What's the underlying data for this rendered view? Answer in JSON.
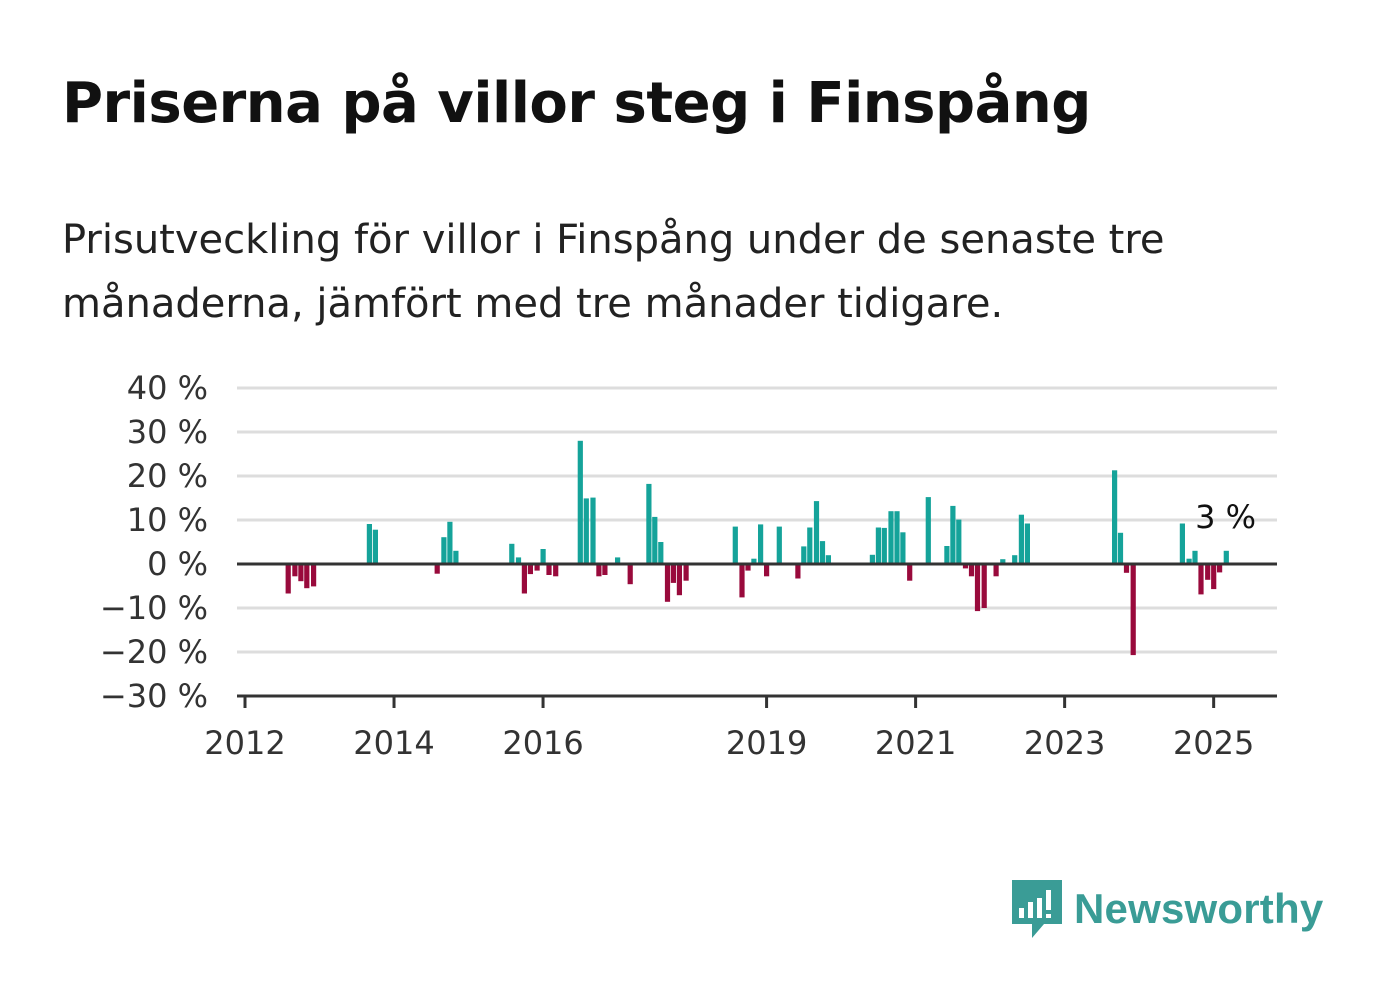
{
  "title": "Priserna på villor steg i Finspång",
  "subtitle": "Prisutveckling för villor i Finspång under de senaste tre månaderna, jämfört med tre månader tidigare.",
  "brand": {
    "name": "Newsworthy",
    "icon": "newsworthy-logo-icon",
    "color": "#3a9c96"
  },
  "colors": {
    "positive": "#15a39a",
    "negative": "#990a3c",
    "grid": "#dddddd",
    "axis": "#333333"
  },
  "chart_data": {
    "type": "bar",
    "ylim": [
      -30,
      40
    ],
    "yticks": [
      40,
      30,
      20,
      10,
      0,
      -10,
      -20,
      -30
    ],
    "ytick_labels": [
      "40 %",
      "30 %",
      "20 %",
      "10 %",
      "0 %",
      "−10 %",
      "−20 %",
      "−30 %"
    ],
    "xlim": [
      2012,
      2025.85
    ],
    "xticks": [
      2012,
      2014,
      2016,
      2019,
      2021,
      2023,
      2025
    ],
    "xtick_labels": [
      "2012",
      "2014",
      "2016",
      "2019",
      "2021",
      "2023",
      "2025"
    ],
    "grid": true,
    "annotation": {
      "text": "3 %",
      "x": 2025.17,
      "y": 3
    },
    "series": [
      {
        "values": [
          [
            2012.58,
            -6.7
          ],
          [
            2012.67,
            -2.8
          ],
          [
            2012.75,
            -3.9
          ],
          [
            2012.83,
            -5.5
          ],
          [
            2012.92,
            -5.1
          ],
          [
            2013.67,
            9.1
          ],
          [
            2013.75,
            7.8
          ],
          [
            2014.58,
            -2.2
          ],
          [
            2014.67,
            6.1
          ],
          [
            2014.75,
            9.6
          ],
          [
            2014.83,
            3.0
          ],
          [
            2015.58,
            4.6
          ],
          [
            2015.67,
            1.5
          ],
          [
            2015.75,
            -6.7
          ],
          [
            2015.83,
            -2.3
          ],
          [
            2015.92,
            -1.5
          ],
          [
            2016.0,
            3.4
          ],
          [
            2016.08,
            -2.5
          ],
          [
            2016.17,
            -2.8
          ],
          [
            2016.5,
            28.0
          ],
          [
            2016.58,
            14.9
          ],
          [
            2016.67,
            15.1
          ],
          [
            2016.75,
            -2.8
          ],
          [
            2016.83,
            -2.5
          ],
          [
            2017.0,
            1.5
          ],
          [
            2017.17,
            -4.6
          ],
          [
            2017.42,
            18.2
          ],
          [
            2017.5,
            10.7
          ],
          [
            2017.58,
            5.0
          ],
          [
            2017.67,
            -8.6
          ],
          [
            2017.75,
            -4.3
          ],
          [
            2017.83,
            -7.1
          ],
          [
            2017.92,
            -3.8
          ],
          [
            2018.58,
            8.5
          ],
          [
            2018.67,
            -7.6
          ],
          [
            2018.75,
            -1.5
          ],
          [
            2018.83,
            1.2
          ],
          [
            2018.92,
            9.0
          ],
          [
            2019.0,
            -2.8
          ],
          [
            2019.17,
            8.5
          ],
          [
            2019.42,
            -3.3
          ],
          [
            2019.5,
            4.0
          ],
          [
            2019.58,
            8.3
          ],
          [
            2019.67,
            14.3
          ],
          [
            2019.75,
            5.2
          ],
          [
            2019.83,
            2.0
          ],
          [
            2020.42,
            2.1
          ],
          [
            2020.5,
            8.3
          ],
          [
            2020.58,
            8.2
          ],
          [
            2020.67,
            12.0
          ],
          [
            2020.75,
            12.0
          ],
          [
            2020.83,
            7.2
          ],
          [
            2020.92,
            -3.8
          ],
          [
            2021.17,
            15.2
          ],
          [
            2021.42,
            4.1
          ],
          [
            2021.5,
            13.2
          ],
          [
            2021.58,
            10.1
          ],
          [
            2021.67,
            -1.0
          ],
          [
            2021.75,
            -2.8
          ],
          [
            2021.83,
            -10.7
          ],
          [
            2021.92,
            -10.0
          ],
          [
            2022.08,
            -2.8
          ],
          [
            2022.17,
            1.1
          ],
          [
            2022.33,
            2.0
          ],
          [
            2022.42,
            11.2
          ],
          [
            2022.5,
            9.2
          ],
          [
            2023.67,
            21.3
          ],
          [
            2023.75,
            7.1
          ],
          [
            2023.83,
            -2.0
          ],
          [
            2023.92,
            -20.7
          ],
          [
            2024.58,
            9.2
          ],
          [
            2024.67,
            1.2
          ],
          [
            2024.75,
            3.0
          ],
          [
            2024.83,
            -6.9
          ],
          [
            2024.92,
            -3.6
          ],
          [
            2025.0,
            -5.7
          ],
          [
            2025.08,
            -1.9
          ],
          [
            2025.17,
            3.0
          ]
        ]
      }
    ]
  }
}
